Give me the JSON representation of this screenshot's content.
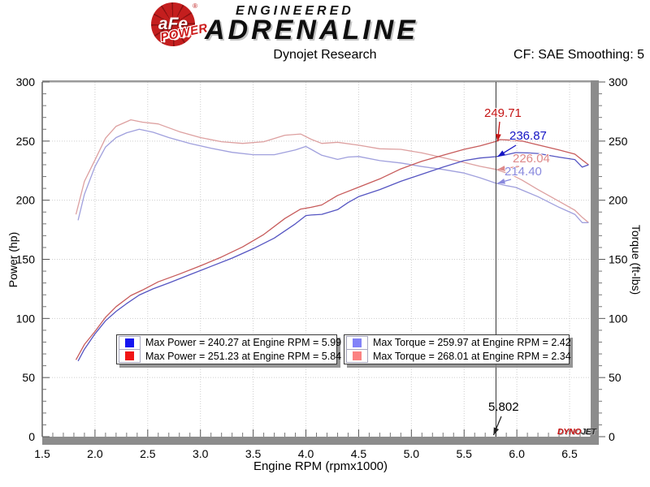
{
  "header": {
    "logo": {
      "circle_text": "aFe",
      "reg": "®",
      "power": "POWER",
      "line1": "ENGINEERED",
      "line2": "ADRENALINE"
    },
    "title": "Dynojet Research",
    "cf": "CF: SAE Smoothing: 5"
  },
  "branding": {
    "dynojet_prefix": "DYNO",
    "dynojet_suffix": "JET"
  },
  "legend": {
    "boxes": [
      {
        "items": [
          {
            "color": "#1515f0",
            "label": "Max Power = 240.27 at Engine RPM = 5.99"
          },
          {
            "color": "#f01515",
            "label": "Max Power = 251.23 at Engine RPM = 5.84"
          }
        ]
      },
      {
        "items": [
          {
            "color": "#8282f8",
            "label": "Max Torque = 259.97 at Engine RPM = 2.42"
          },
          {
            "color": "#fb8282",
            "label": "Max Torque = 268.01 at Engine RPM = 2.34"
          }
        ]
      }
    ]
  },
  "chart_data": {
    "type": "line",
    "title": "Dynojet Research",
    "correction": "CF: SAE Smoothing: 5",
    "xlabel": "Engine RPM (rpmx1000)",
    "ylabel_left": "Power (hp)",
    "ylabel_right": "Torque (ft-lbs)",
    "xlim": [
      1.5,
      6.7
    ],
    "ylim": [
      0,
      300
    ],
    "x_major_step": 0.5,
    "x_minor_step": 0.1,
    "y_major_step": 50,
    "y_minor_step": 10,
    "grid": "dotted-major",
    "legend_position": "bottom-inside",
    "series": [
      {
        "name": "torque-run-red",
        "unit": "ft-lbs",
        "color": "#dda0a0",
        "max": {
          "value": 268.01,
          "rpm": 2.34
        },
        "points": [
          [
            1.82,
            188
          ],
          [
            1.9,
            216
          ],
          [
            2.0,
            234
          ],
          [
            2.1,
            252.5
          ],
          [
            2.2,
            262.5
          ],
          [
            2.34,
            268
          ],
          [
            2.45,
            266
          ],
          [
            2.6,
            264.5
          ],
          [
            2.8,
            258
          ],
          [
            3.0,
            253
          ],
          [
            3.2,
            249.5
          ],
          [
            3.4,
            248
          ],
          [
            3.6,
            249.5
          ],
          [
            3.8,
            255
          ],
          [
            3.95,
            256
          ],
          [
            4.05,
            251.5
          ],
          [
            4.15,
            248
          ],
          [
            4.3,
            249
          ],
          [
            4.5,
            246.5
          ],
          [
            4.7,
            243.5
          ],
          [
            4.9,
            243
          ],
          [
            5.1,
            240
          ],
          [
            5.3,
            236
          ],
          [
            5.5,
            232
          ],
          [
            5.65,
            228.7
          ],
          [
            5.802,
            226.04
          ],
          [
            5.95,
            221.5
          ],
          [
            6.05,
            217
          ],
          [
            6.2,
            209
          ],
          [
            6.4,
            199
          ],
          [
            6.55,
            191.5
          ],
          [
            6.62,
            185.5
          ],
          [
            6.68,
            181
          ]
        ]
      },
      {
        "name": "torque-run-blue",
        "unit": "ft-lbs",
        "color": "#a0a0dd",
        "max": {
          "value": 259.97,
          "rpm": 2.42
        },
        "points": [
          [
            1.84,
            183
          ],
          [
            1.9,
            205
          ],
          [
            2.0,
            228.5
          ],
          [
            2.1,
            245
          ],
          [
            2.2,
            253
          ],
          [
            2.3,
            257
          ],
          [
            2.42,
            260
          ],
          [
            2.55,
            257.5
          ],
          [
            2.7,
            253
          ],
          [
            2.9,
            248
          ],
          [
            3.1,
            244
          ],
          [
            3.3,
            240.5
          ],
          [
            3.5,
            238.5
          ],
          [
            3.7,
            238.5
          ],
          [
            3.9,
            242.5
          ],
          [
            4.0,
            245.5
          ],
          [
            4.05,
            243
          ],
          [
            4.15,
            238
          ],
          [
            4.3,
            234.5
          ],
          [
            4.4,
            236.5
          ],
          [
            4.5,
            237
          ],
          [
            4.7,
            233.5
          ],
          [
            4.9,
            231.5
          ],
          [
            5.1,
            228.5
          ],
          [
            5.3,
            226
          ],
          [
            5.5,
            223
          ],
          [
            5.65,
            219
          ],
          [
            5.802,
            214.4
          ],
          [
            5.9,
            212.3
          ],
          [
            5.99,
            210.8
          ],
          [
            6.1,
            206.7
          ],
          [
            6.2,
            203
          ],
          [
            6.4,
            194
          ],
          [
            6.55,
            188
          ],
          [
            6.62,
            181
          ],
          [
            6.68,
            181
          ]
        ]
      },
      {
        "name": "power-run-red",
        "unit": "hp",
        "color": "#c75b5b",
        "max": {
          "value": 251.23,
          "rpm": 5.84
        },
        "points": [
          [
            1.82,
            65
          ],
          [
            1.9,
            78
          ],
          [
            2.0,
            89
          ],
          [
            2.1,
            101
          ],
          [
            2.2,
            110
          ],
          [
            2.34,
            119.4
          ],
          [
            2.45,
            124
          ],
          [
            2.6,
            131
          ],
          [
            2.8,
            137.5
          ],
          [
            3.0,
            144.5
          ],
          [
            3.2,
            152
          ],
          [
            3.4,
            160.5
          ],
          [
            3.6,
            171
          ],
          [
            3.8,
            184.5
          ],
          [
            3.95,
            192.5
          ],
          [
            4.05,
            194
          ],
          [
            4.15,
            196
          ],
          [
            4.3,
            204
          ],
          [
            4.5,
            211
          ],
          [
            4.7,
            218
          ],
          [
            4.9,
            226.5
          ],
          [
            5.1,
            233
          ],
          [
            5.3,
            238
          ],
          [
            5.5,
            243
          ],
          [
            5.65,
            246
          ],
          [
            5.802,
            249.71
          ],
          [
            5.84,
            251.23
          ],
          [
            5.95,
            250.8
          ],
          [
            6.05,
            250
          ],
          [
            6.2,
            246.8
          ],
          [
            6.4,
            242.5
          ],
          [
            6.55,
            239
          ],
          [
            6.62,
            234
          ],
          [
            6.68,
            230
          ]
        ]
      },
      {
        "name": "power-run-blue",
        "unit": "hp",
        "color": "#5555c2",
        "max": {
          "value": 240.27,
          "rpm": 5.99
        },
        "points": [
          [
            1.84,
            64
          ],
          [
            1.9,
            74
          ],
          [
            2.0,
            87
          ],
          [
            2.1,
            98
          ],
          [
            2.2,
            106
          ],
          [
            2.3,
            112.5
          ],
          [
            2.42,
            119.8
          ],
          [
            2.55,
            125
          ],
          [
            2.7,
            130
          ],
          [
            2.9,
            137
          ],
          [
            3.1,
            144
          ],
          [
            3.3,
            151
          ],
          [
            3.5,
            159
          ],
          [
            3.7,
            168
          ],
          [
            3.9,
            180
          ],
          [
            4.0,
            187
          ],
          [
            4.05,
            187.5
          ],
          [
            4.15,
            188
          ],
          [
            4.3,
            192
          ],
          [
            4.4,
            198
          ],
          [
            4.5,
            203
          ],
          [
            4.7,
            209
          ],
          [
            4.9,
            216
          ],
          [
            5.1,
            222
          ],
          [
            5.3,
            228
          ],
          [
            5.5,
            233.5
          ],
          [
            5.65,
            235.7
          ],
          [
            5.802,
            236.87
          ],
          [
            5.9,
            238.5
          ],
          [
            5.99,
            240.27
          ],
          [
            6.1,
            240
          ],
          [
            6.2,
            239.5
          ],
          [
            6.4,
            236.4
          ],
          [
            6.55,
            234.4
          ],
          [
            6.62,
            228
          ],
          [
            6.68,
            230
          ]
        ]
      }
    ],
    "cursor": {
      "x": 5.802,
      "label": "5.802",
      "values": [
        {
          "text": "249.71",
          "value": 249.71,
          "color": "#c41414",
          "series": "power-run-red"
        },
        {
          "text": "236.87",
          "value": 236.87,
          "color": "#1414c4",
          "series": "power-run-blue"
        },
        {
          "text": "226.04",
          "value": 226.04,
          "color": "#de8989",
          "series": "torque-run-red"
        },
        {
          "text": "214.40",
          "value": 214.4,
          "color": "#8989de",
          "series": "torque-run-blue"
        }
      ]
    }
  }
}
